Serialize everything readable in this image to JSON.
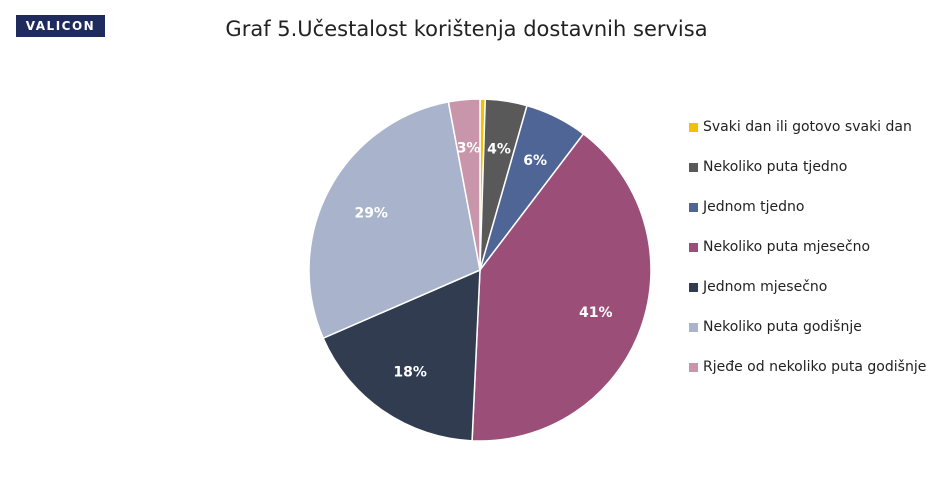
{
  "logo": "VALICON",
  "chart_data": {
    "type": "pie",
    "title": "Graf 5.Učestalost korištenja dostavnih servisa",
    "categories": [
      "Svaki dan ili gotovo svaki dan",
      "Nekoliko puta tjedno",
      "Jednom tjedno",
      "Nekoliko puta mjesečno",
      "Jednom mjesečno",
      "Nekoliko puta godišnje",
      "Rjeđe od nekoliko puta godišnje"
    ],
    "values": [
      0.5,
      4,
      6,
      41,
      18,
      29,
      3
    ],
    "labels": [
      "",
      "4%",
      "6%",
      "41%",
      "18%",
      "29%",
      "3%"
    ],
    "colors": [
      "#f2c200",
      "#595959",
      "#4f6596",
      "#9b4f78",
      "#323c50",
      "#a9b4cc",
      "#c895ab"
    ],
    "legend_position": "right"
  }
}
